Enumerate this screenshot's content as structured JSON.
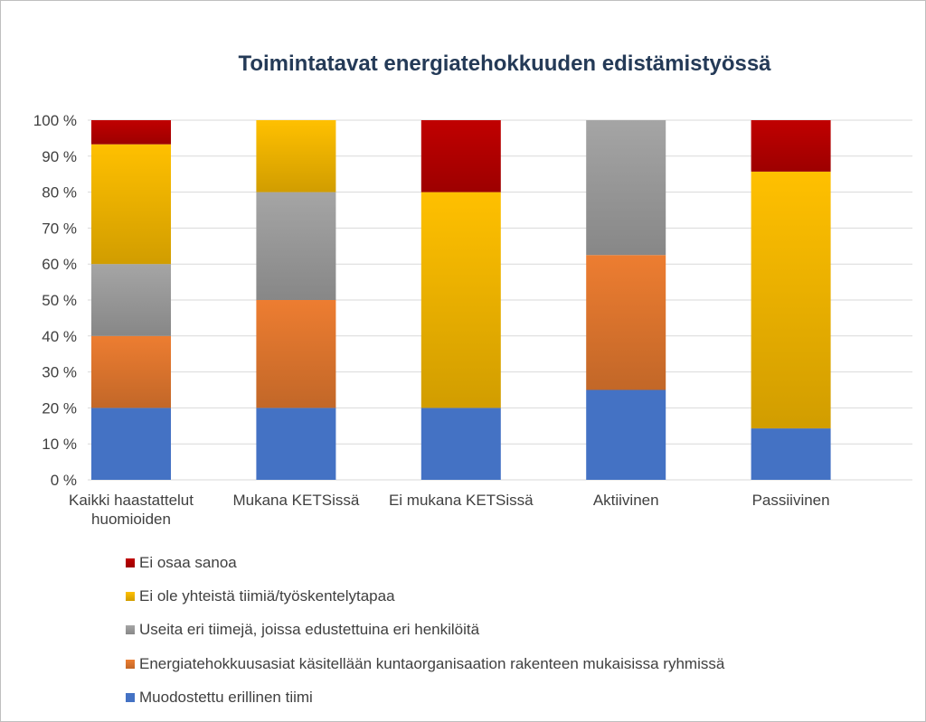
{
  "chart_data": {
    "type": "bar",
    "stacked": "percent",
    "title": "Toimintatavat energiatehokkuuden edistämistyössä",
    "xlabel": "",
    "ylabel": "",
    "ylim": [
      0,
      100
    ],
    "y_ticks": [
      "0 %",
      "10 %",
      "20 %",
      "30 %",
      "40 %",
      "50 %",
      "60 %",
      "70 %",
      "80 %",
      "90 %",
      "100 %"
    ],
    "grid": true,
    "legend_position": "bottom",
    "categories": [
      [
        "Kaikki haastattelut",
        "huomioiden"
      ],
      [
        "Mukana KETSissä"
      ],
      [
        "Ei mukana KETSissä"
      ],
      [
        "Aktiivinen"
      ],
      [
        "Passiivinen"
      ]
    ],
    "series": [
      {
        "name": "Muodostettu erillinen tiimi",
        "color": "#4472c4",
        "values": [
          20,
          20,
          20,
          25,
          14.3
        ]
      },
      {
        "name": "Energiatehokkuusasiat käsitellään kuntaorganisaation rakenteen mukaisissa ryhmissä",
        "color": "#ed7d31",
        "values": [
          20,
          30,
          0,
          37.5,
          0
        ]
      },
      {
        "name": "Useita eri tiimejä, joissa edustettuina eri henkilöitä",
        "color": "#a5a5a5",
        "values": [
          20,
          30,
          0,
          37.5,
          0
        ]
      },
      {
        "name": "Ei ole yhteistä tiimiä/työskentelytapaa",
        "color": "#ffc000",
        "values": [
          33.3,
          20,
          60,
          0,
          71.4
        ]
      },
      {
        "name": "Ei osaa sanoa",
        "color": "#c00000",
        "values": [
          6.7,
          0,
          20,
          0,
          14.3
        ]
      }
    ]
  }
}
